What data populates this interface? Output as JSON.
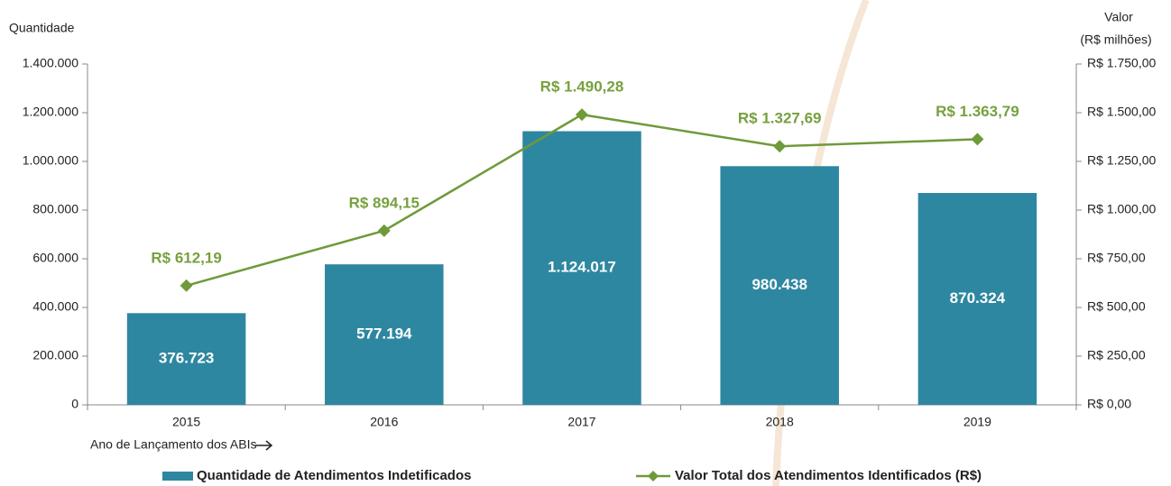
{
  "chart_data": {
    "type": "bar",
    "ylabel": "Quantidade",
    "y2label": [
      "Valor",
      "(R$ milhões)"
    ],
    "xlabel": "Ano de Lançamento dos ABIs",
    "categories": [
      "2015",
      "2016",
      "2017",
      "2018",
      "2019"
    ],
    "series": [
      {
        "name": "Quantidade de Atendimentos Indetificados",
        "type": "bar",
        "color": "#2e87a0",
        "values": [
          376723,
          577194,
          1124017,
          980438,
          870324
        ],
        "value_labels": [
          "376.723",
          "577.194",
          "1.124.017",
          "980.438",
          "870.324"
        ]
      },
      {
        "name": "Valor Total dos Atendimentos Identificados (R$)",
        "type": "line",
        "axis": "y2",
        "color": "#6f9a3a",
        "values": [
          612.19,
          894.15,
          1490.28,
          1327.69,
          1363.79
        ],
        "value_labels": [
          "R$ 612,19",
          "R$ 894,15",
          "R$ 1.490,28",
          "R$ 1.327,69",
          "R$ 1.363,79"
        ]
      }
    ],
    "ylim": [
      0,
      1400000
    ],
    "yticks": [
      0,
      {
        "value": 200000,
        "label": "200.000"
      },
      {
        "value": 400000,
        "label": "400.000"
      },
      {
        "value": 600000,
        "label": "600.000"
      },
      {
        "value": 800000,
        "label": "800.000"
      },
      {
        "value": 1000000,
        "label": "1.000.000"
      },
      {
        "value": 1200000,
        "label": "1.200.000"
      },
      {
        "value": 1400000,
        "label": "1.400.000"
      }
    ],
    "y2lim": [
      0,
      1750
    ],
    "y2ticks": [
      {
        "value": 0,
        "label": "R$ 0,00"
      },
      {
        "value": 250,
        "label": "R$ 250,00"
      },
      {
        "value": 500,
        "label": "R$ 500,00"
      },
      {
        "value": 750,
        "label": "R$ 750,00"
      },
      {
        "value": 1000,
        "label": "R$ 1.000,00"
      },
      {
        "value": 1250,
        "label": "R$ 1.250,00"
      },
      {
        "value": 1500,
        "label": "R$ 1.500,00"
      },
      {
        "value": 1750,
        "label": "R$ 1.750,00"
      }
    ],
    "grid": false,
    "legend": "bottom"
  }
}
